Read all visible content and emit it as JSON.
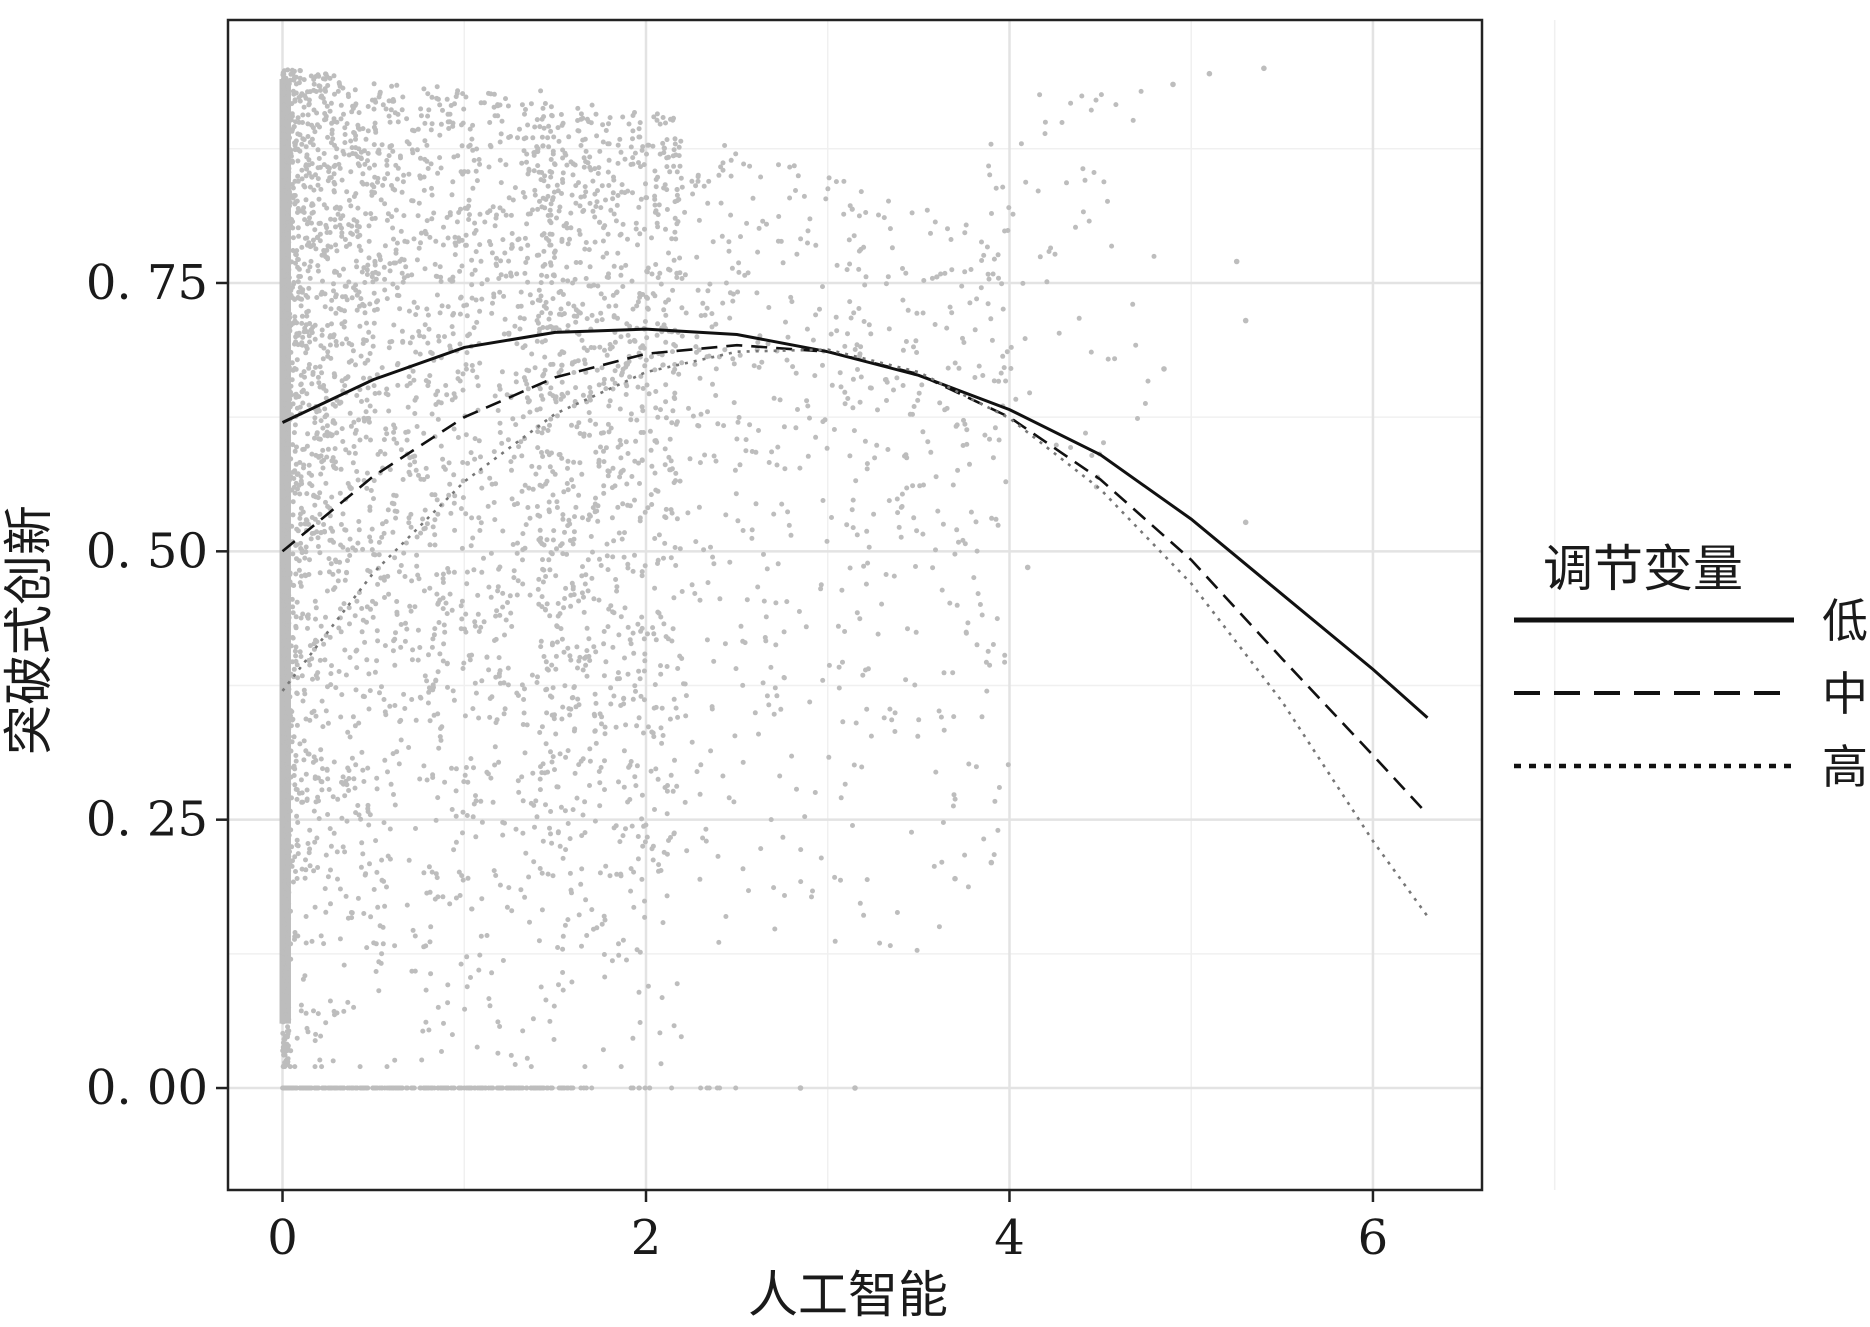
{
  "chart_data": {
    "type": "scatter",
    "xlabel": "人工智能",
    "ylabel": "突破式创新",
    "xlim": [
      -0.3,
      6.6
    ],
    "ylim": [
      -0.095,
      0.995
    ],
    "x_ticks": [
      0,
      2,
      4,
      6
    ],
    "x_tick_labels": [
      "0",
      "2",
      "4",
      "6"
    ],
    "y_ticks": [
      0.0,
      0.25,
      0.5,
      0.75
    ],
    "y_tick_labels": [
      "0. 00",
      "0. 25",
      "0. 50",
      "0. 75"
    ],
    "grid": true,
    "legend": {
      "title": "调节变量",
      "position": "right",
      "entries": [
        {
          "label": "低",
          "style": "solid"
        },
        {
          "label": "中",
          "style": "dashed"
        },
        {
          "label": "高",
          "style": "dotted"
        }
      ]
    },
    "series": [
      {
        "name": "低",
        "style": "solid",
        "color": "#111111",
        "x": [
          0,
          0.5,
          1.0,
          1.5,
          2.0,
          2.5,
          3.0,
          3.5,
          4.0,
          4.5,
          5.0,
          5.5,
          6.0,
          6.3
        ],
        "y": [
          0.62,
          0.66,
          0.69,
          0.704,
          0.707,
          0.702,
          0.686,
          0.664,
          0.632,
          0.59,
          0.53,
          0.46,
          0.39,
          0.345
        ]
      },
      {
        "name": "中",
        "style": "dashed",
        "color": "#111111",
        "x": [
          0,
          0.5,
          1.0,
          1.5,
          2.0,
          2.5,
          3.0,
          3.5,
          4.0,
          4.5,
          5.0,
          5.5,
          6.0,
          6.3
        ],
        "y": [
          0.5,
          0.57,
          0.625,
          0.662,
          0.684,
          0.692,
          0.686,
          0.665,
          0.625,
          0.567,
          0.492,
          0.4,
          0.31,
          0.255
        ]
      },
      {
        "name": "高",
        "style": "dotted",
        "color": "#777777",
        "x": [
          0,
          0.5,
          1.0,
          1.5,
          2.0,
          2.5,
          3.0,
          3.5,
          4.0,
          4.5,
          5.0,
          5.5,
          6.0,
          6.3
        ],
        "y": [
          0.37,
          0.48,
          0.565,
          0.628,
          0.667,
          0.686,
          0.688,
          0.667,
          0.624,
          0.558,
          0.47,
          0.36,
          0.23,
          0.16
        ]
      }
    ],
    "scatter": {
      "color": "#bdbdbd",
      "notable_points": [
        {
          "x": 5.4,
          "y": 0.95
        },
        {
          "x": 5.1,
          "y": 0.945
        },
        {
          "x": 4.9,
          "y": 0.935
        },
        {
          "x": 5.25,
          "y": 0.77
        },
        {
          "x": 5.3,
          "y": 0.715
        },
        {
          "x": 4.85,
          "y": 0.67
        },
        {
          "x": 5.3,
          "y": 0.527
        },
        {
          "x": 4.1,
          "y": 0.485
        },
        {
          "x": 3.9,
          "y": 0.21
        },
        {
          "x": 3.7,
          "y": 0.195
        },
        {
          "x": 3.15,
          "y": 0.0
        },
        {
          "x": 2.85,
          "y": 0.0
        }
      ]
    }
  }
}
